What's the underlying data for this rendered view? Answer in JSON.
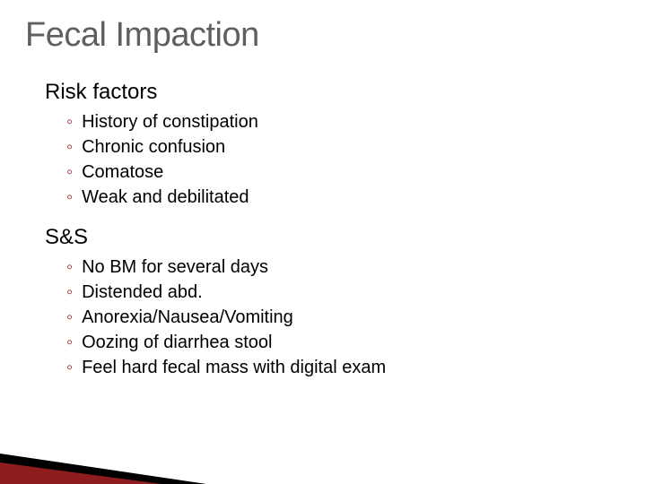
{
  "title": "Fecal Impaction",
  "title_color": "#5f5f5f",
  "title_fontsize": 38,
  "body_fontsize": 24,
  "sub_fontsize": 20,
  "main_bullet_glyph": "֐",
  "sub_bullet_glyph": "◦",
  "sub_bullet_color": "#a02020",
  "accent_black": "#000000",
  "accent_red": "#a02020",
  "background_color": "#ffffff",
  "sections": [
    {
      "title": "Risk factors",
      "items": [
        "History of constipation",
        "Chronic confusion",
        "Comatose",
        "Weak and debilitated"
      ]
    },
    {
      "title": "S&S",
      "items": [
        "No BM for several days",
        "Distended abd.",
        "Anorexia/Nausea/Vomiting",
        "Oozing of diarrhea stool",
        "Feel hard fecal mass with digital exam"
      ]
    }
  ]
}
